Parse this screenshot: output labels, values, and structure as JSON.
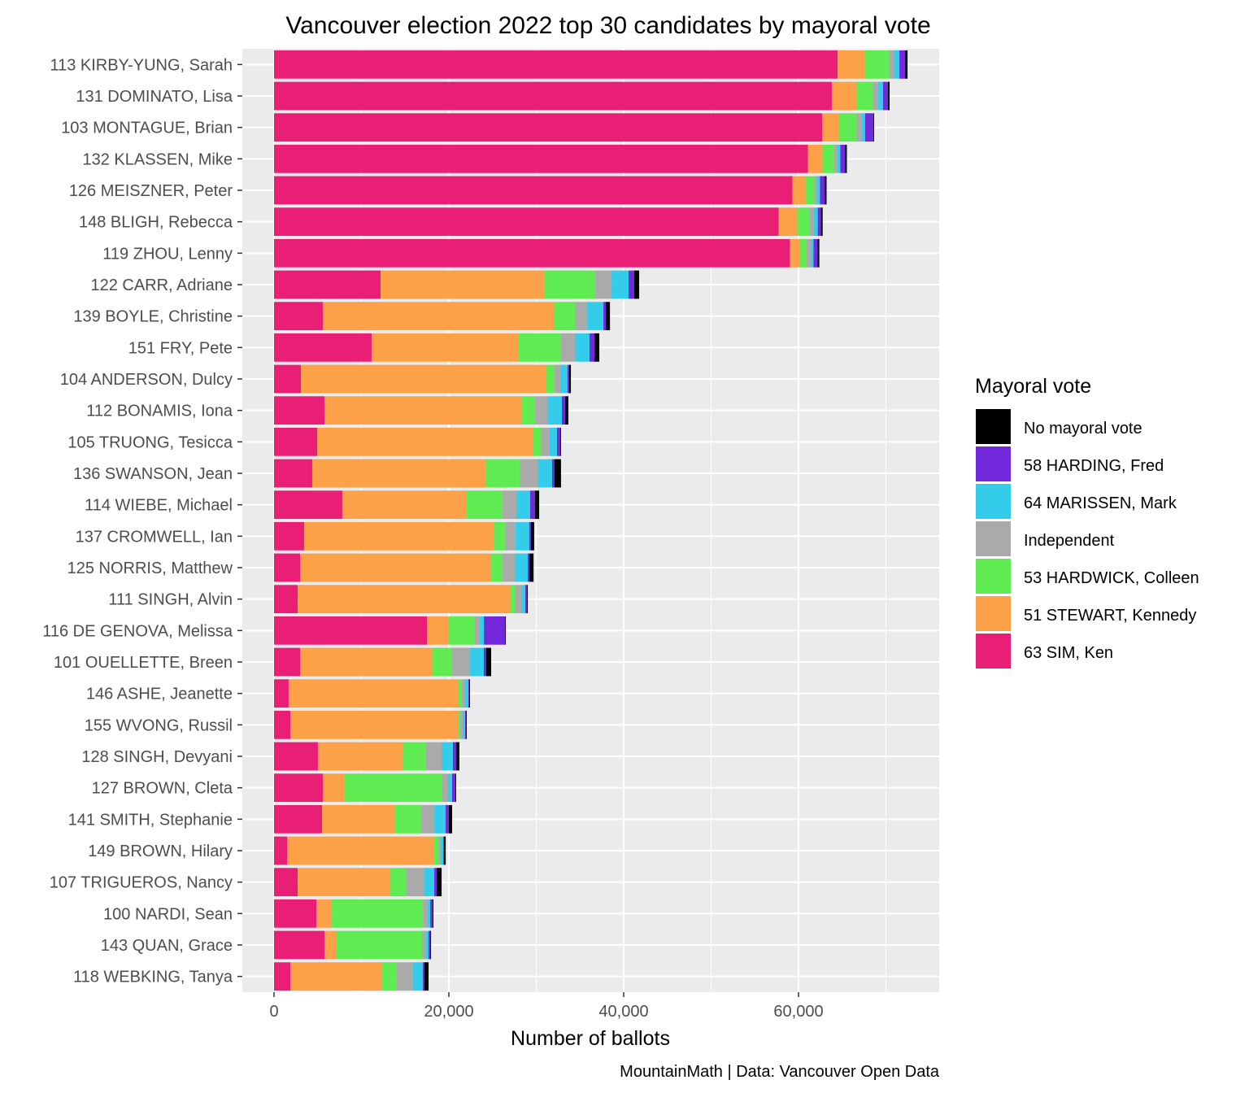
{
  "chart_data": {
    "type": "bar",
    "orientation": "horizontal",
    "stacked": true,
    "title": "Vancouver election 2022 top 30 candidates by mayoral vote",
    "xlabel": "Number of ballots",
    "ylabel": "",
    "caption": "MountainMath | Data: Vancouver Open Data",
    "xlim": [
      0,
      76000
    ],
    "xticks": [
      0,
      20000,
      40000,
      60000
    ],
    "xtick_labels": [
      "0",
      "20,000",
      "40,000",
      "60,000"
    ],
    "grid": true,
    "legend": {
      "title": "Mayoral vote",
      "position": "right",
      "entries": [
        {
          "name": "No mayoral vote",
          "color": "#000000"
        },
        {
          "name": "58 HARDING, Fred",
          "color": "#7228DB"
        },
        {
          "name": "64 MARISSEN, Mark",
          "color": "#33CCEA"
        },
        {
          "name": "Independent",
          "color": "#AAAAAA"
        },
        {
          "name": "53 HARDWICK, Colleen",
          "color": "#5FEC53"
        },
        {
          "name": "51 STEWART, Kennedy",
          "color": "#FCA147"
        },
        {
          "name": "63 SIM, Ken",
          "color": "#E91F76"
        }
      ]
    },
    "stack_order": [
      "63 SIM, Ken",
      "51 STEWART, Kennedy",
      "53 HARDWICK, Colleen",
      "Independent",
      "64 MARISSEN, Mark",
      "58 HARDING, Fred",
      "No mayoral vote"
    ],
    "categories": [
      "113 KIRBY-YUNG, Sarah",
      "131 DOMINATO, Lisa",
      "103 MONTAGUE, Brian",
      "132 KLASSEN, Mike",
      "126 MEISZNER, Peter",
      "148 BLIGH, Rebecca",
      "119 ZHOU, Lenny",
      "122 CARR, Adriane",
      "139 BOYLE, Christine",
      "151 FRY, Pete",
      "104 ANDERSON, Dulcy",
      "112 BONAMIS, Iona",
      "105 TRUONG, Tesicca",
      "136 SWANSON, Jean",
      "114 WIEBE, Michael",
      "137 CROMWELL, Ian",
      "125 NORRIS, Matthew",
      "111 SINGH, Alvin",
      "116 DE GENOVA, Melissa",
      "101 OUELLETTE, Breen",
      "146 ASHE, Jeanette",
      "155 WVONG, Russil",
      "128 SINGH, Devyani",
      "127 BROWN, Cleta",
      "141 SMITH, Stephanie",
      "149 BROWN, Hilary",
      "107 TRIGUEROS, Nancy",
      "100 NARDI, Sean",
      "143 QUAN, Grace",
      "118 WEBKING, Tanya"
    ],
    "series": [
      {
        "name": "63 SIM, Ken",
        "values": [
          64470,
          63810,
          62700,
          61070,
          59300,
          57720,
          59020,
          12190,
          5580,
          11160,
          3070,
          5770,
          4930,
          4370,
          7810,
          3440,
          2980,
          2700,
          17490,
          2980,
          1670,
          1860,
          5020,
          5580,
          5490,
          1490,
          2700,
          4840,
          5770,
          1860
        ]
      },
      {
        "name": "51 STEWART, Kennedy",
        "values": [
          3160,
          2790,
          1950,
          1670,
          1490,
          2140,
          1120,
          18790,
          26420,
          16840,
          28000,
          22600,
          24740,
          19810,
          14140,
          21670,
          21860,
          24370,
          2420,
          15160,
          19350,
          19160,
          9670,
          2510,
          8280,
          16840,
          10510,
          1770,
          1300,
          10510
        ]
      },
      {
        "name": "53 HARDWICK, Colleen",
        "values": [
          2700,
          1860,
          1950,
          1300,
          1020,
          1400,
          740,
          5770,
          2420,
          4840,
          1020,
          1490,
          840,
          3910,
          4190,
          1300,
          1300,
          470,
          2980,
          2230,
          470,
          280,
          2700,
          11160,
          3070,
          470,
          1950,
          10420,
          9860,
          1670
        ]
      },
      {
        "name": "Independent",
        "values": [
          650,
          650,
          650,
          370,
          280,
          470,
          560,
          1860,
          1400,
          1580,
          650,
          1400,
          1020,
          2050,
          1580,
          1210,
          1400,
          740,
          650,
          2050,
          370,
          280,
          1770,
          650,
          1490,
          280,
          2050,
          560,
          470,
          1860
        ]
      },
      {
        "name": "64 MARISSEN, Mark",
        "values": [
          560,
          560,
          370,
          370,
          370,
          470,
          280,
          1950,
          1860,
          1670,
          840,
          1670,
          840,
          1670,
          1580,
          1580,
          1490,
          470,
          470,
          1580,
          370,
          280,
          1300,
          470,
          1300,
          280,
          1120,
          280,
          280,
          1120
        ]
      },
      {
        "name": "58 HARDING, Fred",
        "values": [
          650,
          560,
          930,
          560,
          560,
          370,
          470,
          650,
          280,
          560,
          190,
          370,
          370,
          280,
          560,
          190,
          190,
          190,
          2420,
          280,
          90,
          90,
          370,
          370,
          370,
          90,
          280,
          280,
          190,
          190
        ]
      },
      {
        "name": "No mayoral vote",
        "values": [
          280,
          190,
          90,
          190,
          190,
          190,
          190,
          560,
          470,
          560,
          190,
          370,
          90,
          740,
          470,
          370,
          470,
          90,
          90,
          560,
          90,
          90,
          370,
          90,
          370,
          190,
          560,
          90,
          90,
          470
        ]
      }
    ]
  }
}
